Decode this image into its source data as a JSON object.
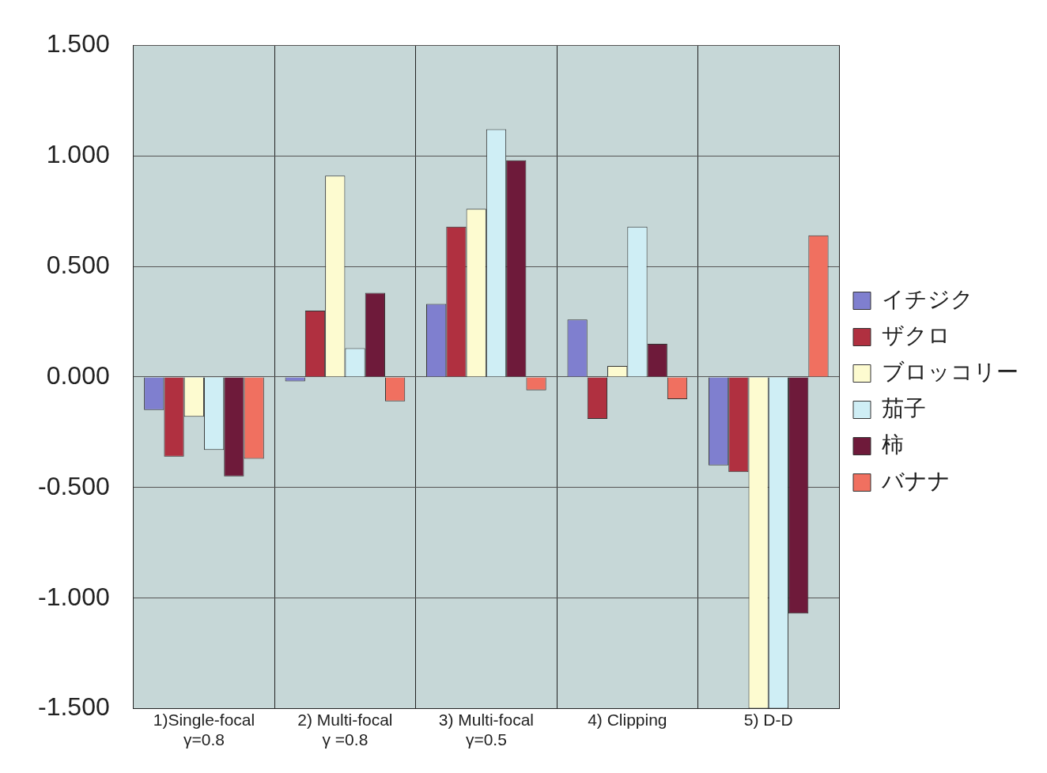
{
  "chart_data": {
    "type": "bar",
    "categories": [
      "1)Single-focal\nγ=0.8",
      "2) Multi-focal\nγ =0.8",
      "3) Multi-focal\nγ=0.5",
      "4) Clipping",
      "5) D-D"
    ],
    "series": [
      {
        "name": "イチジク",
        "color": "#7f7fcf",
        "values": [
          -0.15,
          -0.02,
          0.33,
          0.26,
          -0.4
        ]
      },
      {
        "name": "ザクロ",
        "color": "#b03040",
        "values": [
          -0.36,
          0.3,
          0.68,
          -0.19,
          -0.43
        ]
      },
      {
        "name": "ブロッコリー",
        "color": "#fdfbd0",
        "values": [
          -0.18,
          0.91,
          0.76,
          0.05,
          -1.5
        ]
      },
      {
        "name": "茄子",
        "color": "#cfeef5",
        "values": [
          -0.33,
          0.13,
          1.12,
          0.68,
          -1.5
        ]
      },
      {
        "name": "柿",
        "color": "#6e1a3a",
        "values": [
          -0.45,
          0.38,
          0.98,
          0.15,
          -1.07
        ]
      },
      {
        "name": "バナナ",
        "color": "#f07060",
        "values": [
          -0.37,
          -0.11,
          -0.06,
          -0.1,
          0.64
        ]
      }
    ],
    "ylim": [
      -1.5,
      1.5
    ],
    "yticks": [
      {
        "value": -1.5,
        "label": "-1.500"
      },
      {
        "value": -1,
        "label": "-1.000"
      },
      {
        "value": -0.5,
        "label": "-0.500"
      },
      {
        "value": 0,
        "label": "0.000"
      },
      {
        "value": 0.5,
        "label": "0.500"
      },
      {
        "value": 1,
        "label": "1.000"
      },
      {
        "value": 1.5,
        "label": "1.500"
      }
    ],
    "grid": true,
    "legend": "right"
  }
}
